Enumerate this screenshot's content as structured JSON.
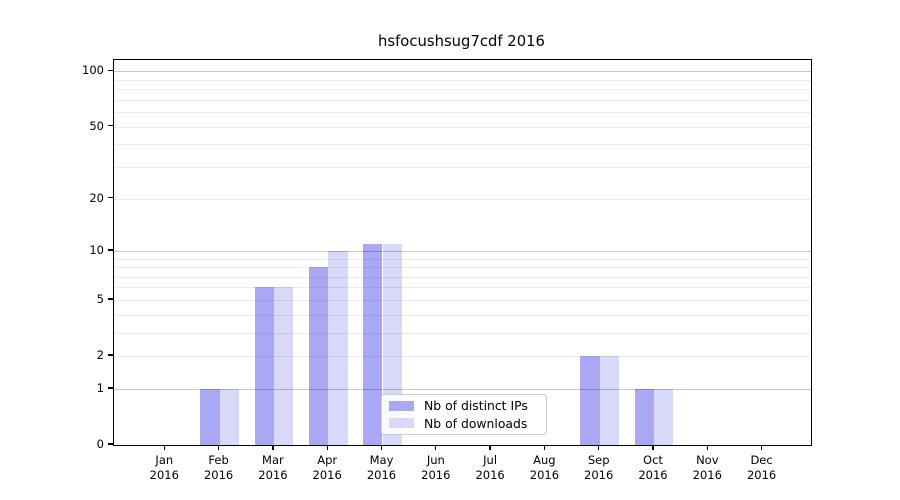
{
  "title": "hsfocushsug7cdf 2016",
  "chart_data": {
    "type": "bar",
    "categories": [
      "Jan",
      "Feb",
      "Mar",
      "Apr",
      "May",
      "Jun",
      "Jul",
      "Aug",
      "Sep",
      "Oct",
      "Nov",
      "Dec"
    ],
    "year": "2016",
    "series": [
      {
        "name": "Nb of distinct IPs",
        "color": "#a8a8f5",
        "values": [
          0,
          1,
          6,
          8,
          11,
          0,
          0,
          0,
          2,
          1,
          0,
          0
        ]
      },
      {
        "name": "Nb of downloads",
        "color": "#d8d8f8",
        "values": [
          0,
          1,
          6,
          10,
          11,
          0,
          0,
          0,
          2,
          1,
          0,
          0
        ]
      }
    ],
    "yscale": "log1p",
    "ylim": [
      0,
      115
    ],
    "ytick_values": [
      0,
      1,
      2,
      5,
      10,
      20,
      50,
      100
    ],
    "ytick_labels": [
      "0",
      "1",
      "2",
      "5",
      "10",
      "20",
      "50",
      "100"
    ],
    "y_major_grid": [
      1,
      10,
      100
    ],
    "y_minor_grid": [
      2,
      3,
      4,
      5,
      6,
      7,
      8,
      9,
      20,
      30,
      40,
      50,
      60,
      70,
      80,
      90
    ],
    "grid": true,
    "legend_position": "lower center"
  },
  "colors": {
    "background": "#ffffff",
    "spine": "#000000",
    "text": "#000000",
    "major_grid": "rgba(0,0,0,0.22)",
    "minor_grid": "rgba(0,0,0,0.075)",
    "legend_border": "#cccccc",
    "legend_bg": "rgba(255,255,255,0.85)"
  }
}
